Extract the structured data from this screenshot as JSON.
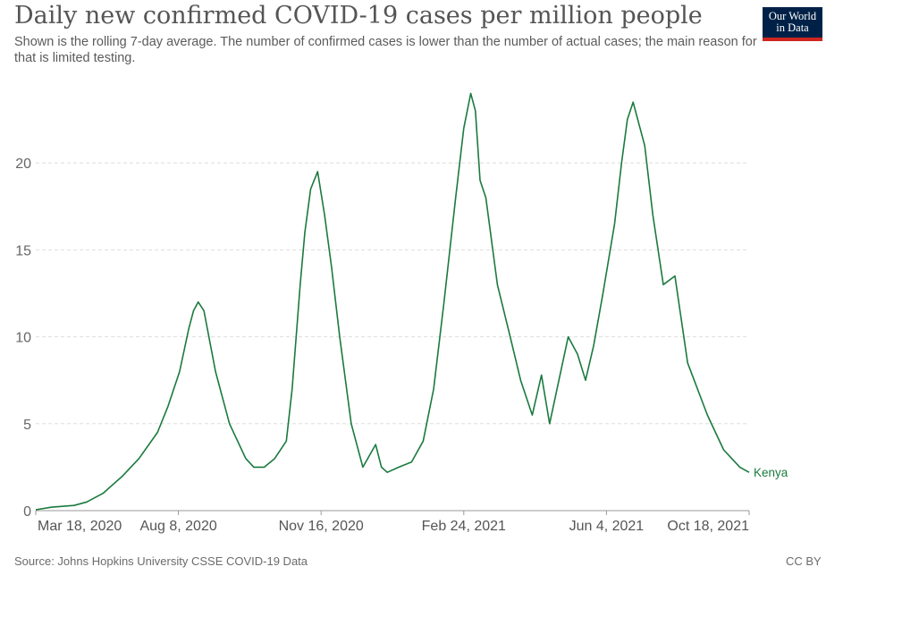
{
  "header": {
    "title": "Daily new confirmed COVID-19 cases per million people",
    "subtitle": "Shown is the rolling 7-day average. The number of confirmed cases is lower than the number of actual cases; the main reason for that is limited testing."
  },
  "logo": {
    "line1": "Our World",
    "line2": "in Data"
  },
  "footer": {
    "source": "Source: Johns Hopkins University CSSE COVID-19 Data",
    "license": "CC BY"
  },
  "colors": {
    "series": "#1a7a3e",
    "grid": "#dddddd",
    "axis": "#999999",
    "logo_bg": "#002147",
    "logo_accent": "#ce261e"
  },
  "chart_data": {
    "type": "line",
    "title": "Daily new confirmed COVID-19 cases per million people",
    "xlabel": "",
    "ylabel": "",
    "x_tick_labels": [
      "Mar 18, 2020",
      "Aug 8, 2020",
      "Nov 16, 2020",
      "Feb 24, 2021",
      "Jun 4, 2021",
      "Oct 18, 2021"
    ],
    "y_ticks": [
      0,
      5,
      10,
      15,
      20
    ],
    "ylim": [
      0,
      25
    ],
    "xlim": [
      "2020-03-18",
      "2021-11-23"
    ],
    "grid": true,
    "series": [
      {
        "name": "Kenya",
        "color": "#1a7a3e",
        "x": [
          "2020-03-18",
          "2020-04-01",
          "2020-04-20",
          "2020-05-01",
          "2020-05-15",
          "2020-06-01",
          "2020-06-15",
          "2020-07-01",
          "2020-07-10",
          "2020-07-20",
          "2020-07-28",
          "2020-08-01",
          "2020-08-05",
          "2020-08-10",
          "2020-08-20",
          "2020-09-01",
          "2020-09-15",
          "2020-09-22",
          "2020-10-01",
          "2020-10-10",
          "2020-10-20",
          "2020-10-25",
          "2020-11-01",
          "2020-11-05",
          "2020-11-10",
          "2020-11-16",
          "2020-11-22",
          "2020-11-28",
          "2020-12-05",
          "2020-12-15",
          "2020-12-25",
          "2021-01-05",
          "2021-01-10",
          "2021-01-15",
          "2021-01-25",
          "2021-02-05",
          "2021-02-15",
          "2021-02-24",
          "2021-03-05",
          "2021-03-15",
          "2021-03-22",
          "2021-03-28",
          "2021-04-01",
          "2021-04-05",
          "2021-04-10",
          "2021-04-20",
          "2021-05-01",
          "2021-05-10",
          "2021-05-20",
          "2021-05-28",
          "2021-06-04",
          "2021-06-12",
          "2021-06-20",
          "2021-06-28",
          "2021-07-05",
          "2021-07-12",
          "2021-07-20",
          "2021-07-30",
          "2021-08-05",
          "2021-08-10",
          "2021-08-15",
          "2021-08-25",
          "2021-09-01",
          "2021-09-10",
          "2021-09-20",
          "2021-10-01",
          "2021-10-18",
          "2021-11-01",
          "2021-11-15",
          "2021-11-23"
        ],
        "values": [
          0.05,
          0.2,
          0.3,
          0.5,
          1.0,
          2.0,
          3.0,
          4.5,
          6.0,
          8.0,
          10.5,
          11.5,
          12.0,
          11.5,
          8.0,
          5.0,
          3.0,
          2.5,
          2.5,
          3.0,
          4.0,
          7.0,
          13.0,
          16.0,
          18.5,
          19.5,
          17.0,
          14.0,
          10.0,
          5.0,
          2.5,
          3.8,
          2.5,
          2.2,
          2.5,
          2.8,
          4.0,
          7.0,
          12.0,
          18.0,
          22.0,
          24.0,
          23.0,
          19.0,
          18.0,
          13.0,
          10.0,
          7.5,
          5.5,
          7.8,
          5.0,
          7.5,
          10.0,
          9.0,
          7.5,
          9.5,
          12.5,
          16.5,
          20.0,
          22.5,
          23.5,
          21.0,
          17.0,
          13.0,
          13.5,
          8.5,
          5.5,
          3.5,
          2.5,
          2.2
        ]
      }
    ]
  }
}
